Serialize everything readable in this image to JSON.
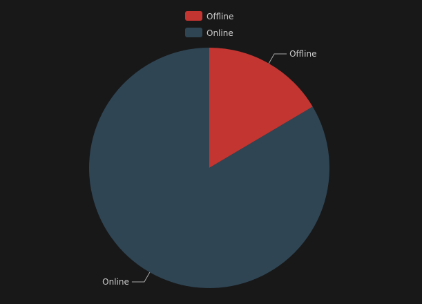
{
  "chart_data": {
    "type": "pie",
    "legend_position": "top-center",
    "slices": [
      {
        "name": "Offline",
        "value": 16.5,
        "color": "#c23531"
      },
      {
        "name": "Online",
        "value": 83.5,
        "color": "#2f4554"
      }
    ]
  },
  "colors": {
    "background": "#181818",
    "text": "#cccccc",
    "leader_line": "#aaaaaa"
  }
}
